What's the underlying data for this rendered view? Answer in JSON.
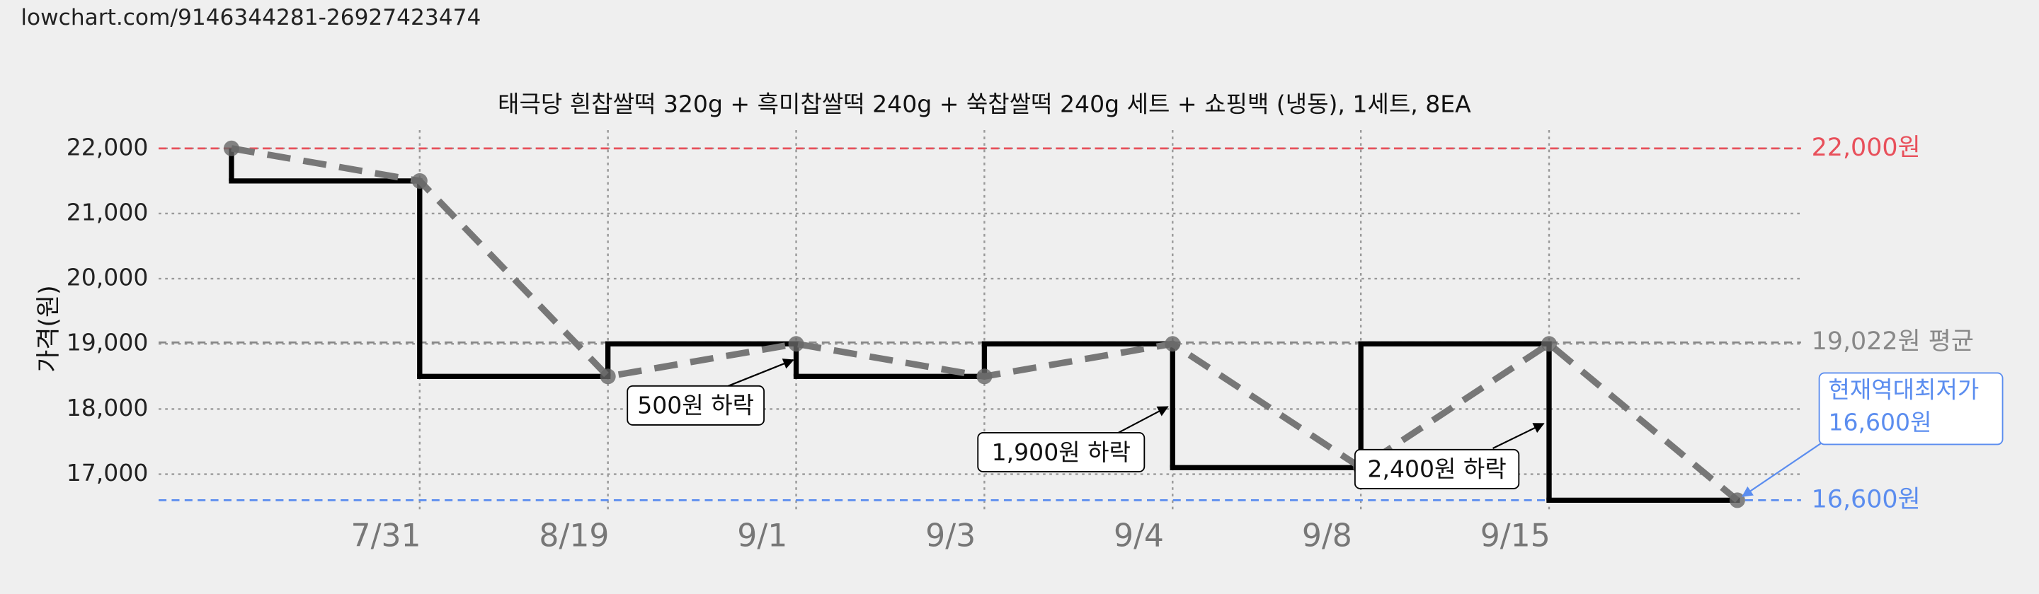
{
  "header": {
    "url": "lowchart.com/9146344281-26927423474"
  },
  "chart_data": {
    "type": "line",
    "title": "태극당 흰찹쌀떡 320g + 흑미찹쌀떡 240g + 쑥찹쌀떡 240g 세트 + 쇼핑백 (냉동), 1세트, 8EA",
    "y_label": "가격(원)",
    "categories": [
      null,
      "7/31",
      "8/19",
      "9/1",
      "9/3",
      "9/4",
      "9/8",
      "9/15",
      null
    ],
    "values": [
      22000,
      21500,
      18500,
      19000,
      18500,
      19000,
      17100,
      19000,
      16600
    ],
    "color": "#777777",
    "step_color": "#000000",
    "ylim": [
      16400,
      22400
    ],
    "yticks": [
      {
        "value": 17000,
        "label": "17,000"
      },
      {
        "value": 18000,
        "label": "18,000"
      },
      {
        "value": 19000,
        "label": "19,000"
      },
      {
        "value": 20000,
        "label": "20,000"
      },
      {
        "value": 21000,
        "label": "21,000"
      },
      {
        "value": 22000,
        "label": "22,000"
      }
    ],
    "grid": true,
    "reference_lines": [
      {
        "value": 22000,
        "label": "22,000원",
        "color": "#e8505b"
      },
      {
        "value": 19022,
        "label": "19,022원 평균",
        "color": "#888888"
      },
      {
        "value": 16600,
        "label": "16,600원",
        "color": "#5b8def"
      }
    ],
    "annotations": [
      "500원 하락",
      "1,900원 하락",
      "2,400원 하락"
    ],
    "callout": [
      "현재역대최저가",
      "16,600원"
    ]
  }
}
